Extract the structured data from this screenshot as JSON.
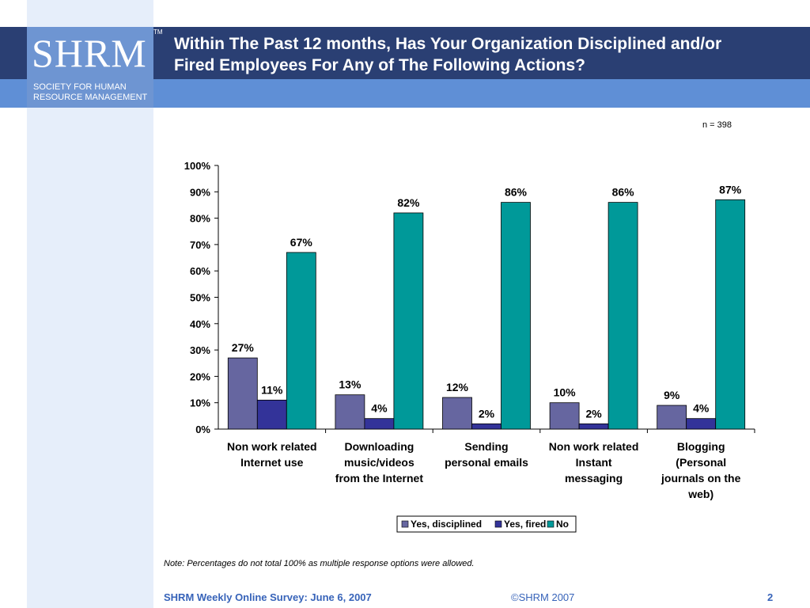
{
  "logo": {
    "wordmark": "SHRM",
    "tm": "TM",
    "subtitle_line1": "SOCIETY FOR HUMAN",
    "subtitle_line2": "RESOURCE MANAGEMENT"
  },
  "title": {
    "line1": "Within The Past 12 months, Has Your Organization Disciplined and/or",
    "line2": "Fired Employees For Any of The Following Actions?"
  },
  "sample_size": "n = 398",
  "note": "Note: Percentages do not total 100% as multiple response options were allowed.",
  "footer": {
    "left": "SHRM Weekly Online Survey: June 6, 2007",
    "center": "©SHRM 2007",
    "page": "2"
  },
  "colors": {
    "title_band": "#2a3f73",
    "subtitle_band": "#5f8fd6",
    "side_panel": "#e6eefa",
    "footer_text": "#3763b9"
  },
  "chart_data": {
    "type": "bar",
    "categories": [
      [
        "Non work related",
        "Internet use"
      ],
      [
        "Downloading",
        "music/videos",
        "from the Internet"
      ],
      [
        "Sending",
        "personal emails"
      ],
      [
        "Non work related",
        "Instant",
        "messaging"
      ],
      [
        "Blogging",
        "(Personal",
        "journals on the",
        "web)"
      ]
    ],
    "series": [
      {
        "name": "Yes, disciplined",
        "color": "#6666a0",
        "values": [
          27,
          13,
          12,
          10,
          9
        ]
      },
      {
        "name": "Yes, fired",
        "color": "#333399",
        "values": [
          11,
          4,
          2,
          2,
          4
        ]
      },
      {
        "name": "No",
        "color": "#009999",
        "values": [
          67,
          82,
          86,
          86,
          87
        ]
      }
    ],
    "data_labels": true,
    "value_suffix": "%",
    "ylim": [
      0,
      100
    ],
    "yticks": [
      0,
      10,
      20,
      30,
      40,
      50,
      60,
      70,
      80,
      90,
      100
    ],
    "ytick_labels": [
      "0%",
      "10%",
      "20%",
      "30%",
      "40%",
      "50%",
      "60%",
      "70%",
      "80%",
      "90%",
      "100%"
    ],
    "grid": false,
    "legend": "bottom-center"
  }
}
